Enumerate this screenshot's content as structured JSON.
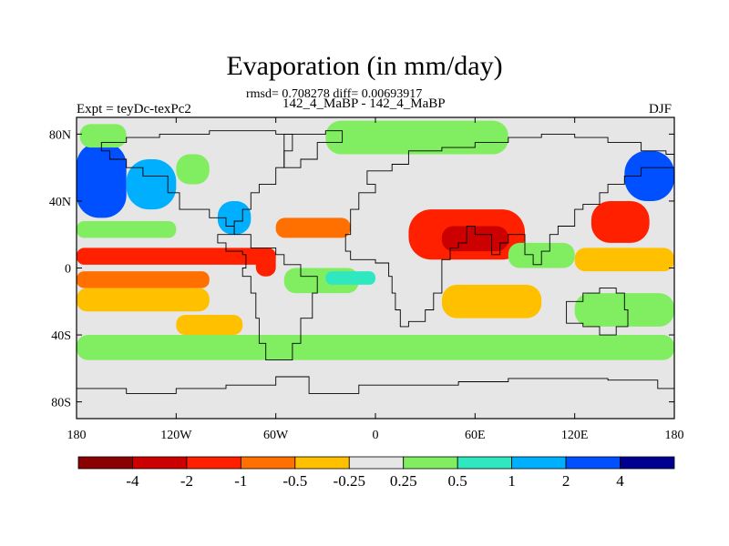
{
  "title": "Evaporation (in mm/day)",
  "stats_line": "rmsd= 0.708278 diff= 0.00693917",
  "subtitle": "142_4_MaBP - 142_4_MaBP",
  "left_label": "Expt = teyDc-texPc2",
  "right_label": "DJF",
  "axes": {
    "x_ticks": [
      {
        "value": -180,
        "label": "180"
      },
      {
        "value": -120,
        "label": "120W"
      },
      {
        "value": -60,
        "label": "60W"
      },
      {
        "value": 0,
        "label": "0"
      },
      {
        "value": 60,
        "label": "60E"
      },
      {
        "value": 120,
        "label": "120E"
      },
      {
        "value": 180,
        "label": "180"
      }
    ],
    "y_ticks": [
      {
        "value": 80,
        "label": "80N"
      },
      {
        "value": 40,
        "label": "40N"
      },
      {
        "value": 0,
        "label": "0"
      },
      {
        "value": -40,
        "label": "40S"
      },
      {
        "value": -80,
        "label": "80S"
      }
    ],
    "xlim": [
      -180,
      180
    ],
    "ylim": [
      -90,
      90
    ]
  },
  "colorbar": {
    "colors": [
      "#8b0000",
      "#cc0000",
      "#ff2000",
      "#ff7000",
      "#ffc000",
      "#e6e6e6",
      "#80ee60",
      "#30e8c0",
      "#00b0ff",
      "#0050ff",
      "#000090"
    ],
    "labels": [
      "-4",
      "-2",
      "-1",
      "-0.5",
      "-0.25",
      "0.25",
      "0.5",
      "1",
      "2",
      "4"
    ]
  },
  "chart_data": {
    "type": "heatmap",
    "projection": "cylindrical-equidistant",
    "variable": "Evaporation difference (mm/day)",
    "season": "DJF",
    "levels": [
      -4,
      -2,
      -1,
      -0.5,
      -0.25,
      0.25,
      0.5,
      1,
      2,
      4
    ],
    "background_value_range": [
      -0.25,
      0.25
    ],
    "anomaly_regions": [
      {
        "region": "North Pacific west",
        "lon": [
          -180,
          -150
        ],
        "lat": [
          30,
          75
        ],
        "value": 2.5
      },
      {
        "region": "North Pacific band",
        "lon": [
          -150,
          -120
        ],
        "lat": [
          35,
          65
        ],
        "value": 1.2
      },
      {
        "region": "North Pacific east",
        "lon": [
          -120,
          -100
        ],
        "lat": [
          50,
          68
        ],
        "value": 0.4
      },
      {
        "region": "Subpolar Pacific west",
        "lon": [
          -178,
          -150
        ],
        "lat": [
          72,
          86
        ],
        "value": 0.4
      },
      {
        "region": "Subtropical North Pacific",
        "lon": [
          -180,
          -120
        ],
        "lat": [
          18,
          28
        ],
        "value": 0.4
      },
      {
        "region": "Central America west coast",
        "lon": [
          -95,
          -75
        ],
        "lat": [
          20,
          40
        ],
        "value": 1.5
      },
      {
        "region": "Tropical North Pacific",
        "lon": [
          -180,
          -60
        ],
        "lat": [
          2,
          12
        ],
        "value": -1.2
      },
      {
        "region": "Tropical Pacific center",
        "lon": [
          -180,
          -100
        ],
        "lat": [
          -12,
          -2
        ],
        "value": -0.7
      },
      {
        "region": "Central America",
        "lon": [
          -72,
          -60
        ],
        "lat": [
          -5,
          12
        ],
        "value": -1.5
      },
      {
        "region": "South Pacific subtropics",
        "lon": [
          -180,
          -100
        ],
        "lat": [
          -26,
          -12
        ],
        "value": -0.4
      },
      {
        "region": "Southeast Pacific",
        "lon": [
          -120,
          -80
        ],
        "lat": [
          -40,
          -28
        ],
        "value": -0.35
      },
      {
        "region": "Subtropical North Atlantic",
        "lon": [
          -60,
          -15
        ],
        "lat": [
          18,
          30
        ],
        "value": -1.0
      },
      {
        "region": "Tropical Atlantic",
        "lon": [
          -55,
          -10
        ],
        "lat": [
          -15,
          0
        ],
        "value": 0.4
      },
      {
        "region": "Southern Ocean",
        "lon": [
          -180,
          180
        ],
        "lat": [
          -55,
          -40
        ],
        "value": 0.35
      },
      {
        "region": "Arctic coast Atlantic sector",
        "lon": [
          -30,
          80
        ],
        "lat": [
          68,
          88
        ],
        "value": 0.4
      },
      {
        "region": "Tropical Indian Ocean north",
        "lon": [
          20,
          90
        ],
        "lat": [
          5,
          35
        ],
        "value": -1.5
      },
      {
        "region": "Tropical Indian Ocean core",
        "lon": [
          40,
          80
        ],
        "lat": [
          10,
          25
        ],
        "value": -2.5
      },
      {
        "region": "Southern Indian Ocean",
        "lon": [
          40,
          100
        ],
        "lat": [
          -30,
          -10
        ],
        "value": -0.4
      },
      {
        "region": "Maritime continent",
        "lon": [
          80,
          120
        ],
        "lat": [
          0,
          15
        ],
        "value": 0.4
      },
      {
        "region": "Western North Pacific coast",
        "lon": [
          130,
          165
        ],
        "lat": [
          15,
          40
        ],
        "value": -1.5
      },
      {
        "region": "Kuroshio extension",
        "lon": [
          150,
          180
        ],
        "lat": [
          40,
          70
        ],
        "value": 3.5
      },
      {
        "region": "Western tropical Pacific",
        "lon": [
          120,
          180
        ],
        "lat": [
          -2,
          12
        ],
        "value": -0.4
      },
      {
        "region": "Western South Pacific",
        "lon": [
          120,
          180
        ],
        "lat": [
          -35,
          -15
        ],
        "value": 0.35
      },
      {
        "region": "Tropical Atlantic south",
        "lon": [
          -30,
          0
        ],
        "lat": [
          -10,
          -2
        ],
        "value": 0.6
      }
    ]
  }
}
